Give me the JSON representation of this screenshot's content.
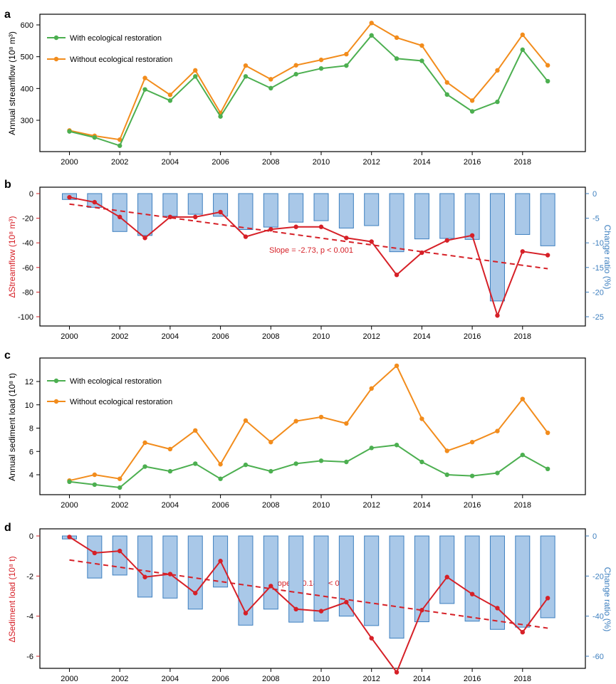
{
  "panels": [
    {
      "label": "a",
      "ylabel": "Annual streamflow (10⁸ m³)",
      "legend": [
        "With ecological restoration",
        "Without ecological restoration"
      ]
    },
    {
      "label": "b",
      "ylabel_left": "ΔStreamflow  (10⁸ m³)",
      "ylabel_right": "Change ratio (%)",
      "annotation": "Slope = -2.73, p < 0.001"
    },
    {
      "label": "c",
      "ylabel": "Annual sediment load (10⁸ t)",
      "legend": [
        "With ecological restoration",
        "Without ecological restoration"
      ]
    },
    {
      "label": "d",
      "ylabel_left": "ΔSediment load (10⁸ t)",
      "ylabel_right": "Change ratio (%)",
      "annotation": "Slope = -0.18, p < 0.01"
    }
  ],
  "colors": {
    "with": "#4caf50",
    "without": "#f28c1c",
    "delta": "#d62027",
    "bars_fill": "#a9c8e8",
    "bars_stroke": "#3d7fbf",
    "right_axis": "#3d7fbf"
  },
  "chart_data": [
    {
      "type": "line",
      "panel": "a",
      "x": [
        2000,
        2001,
        2002,
        2003,
        2004,
        2005,
        2006,
        2007,
        2008,
        2009,
        2010,
        2011,
        2012,
        2013,
        2014,
        2015,
        2016,
        2017,
        2018,
        2019
      ],
      "series": [
        {
          "name": "With ecological restoration",
          "values": [
            265,
            246,
            220,
            397,
            362,
            438,
            312,
            438,
            401,
            445,
            463,
            472,
            567,
            494,
            487,
            381,
            328,
            358,
            522,
            423
          ]
        },
        {
          "name": "Without ecological restoration",
          "values": [
            268,
            251,
            239,
            433,
            380,
            457,
            323,
            472,
            429,
            473,
            490,
            508,
            606,
            560,
            535,
            419,
            362,
            457,
            569,
            473
          ]
        }
      ],
      "xticks": [
        2000,
        2002,
        2004,
        2006,
        2008,
        2010,
        2012,
        2014,
        2016,
        2018
      ],
      "yticks": [
        300,
        400,
        500,
        600
      ],
      "xlim": [
        1999.1,
        2019.9
      ],
      "ylim": [
        210,
        620
      ],
      "ylabel": "Annual streamflow (10⁸ m³)",
      "legend_position": "top-left"
    },
    {
      "type": "bar+line",
      "panel": "b",
      "x": [
        2000,
        2001,
        2002,
        2003,
        2004,
        2005,
        2006,
        2007,
        2008,
        2009,
        2010,
        2011,
        2012,
        2013,
        2014,
        2015,
        2016,
        2017,
        2018,
        2019
      ],
      "series": [
        {
          "name": "ΔStreamflow",
          "axis": "left",
          "values": [
            -3,
            -7,
            -19,
            -36,
            -19,
            -19,
            -15,
            -35,
            -29,
            -27,
            -27,
            -36,
            -39,
            -66,
            -48,
            -38,
            -34,
            -99,
            -47,
            -50
          ]
        },
        {
          "name": "Change ratio",
          "axis": "right",
          "type": "bar",
          "values": [
            -1.2,
            -2.8,
            -7.7,
            -8.5,
            -4.6,
            -4.2,
            -4.6,
            -7.3,
            -6.8,
            -5.8,
            -5.5,
            -7.0,
            -6.5,
            -11.8,
            -9.2,
            -9.1,
            -9.3,
            -21.8,
            -8.3,
            -10.6
          ]
        }
      ],
      "trend": {
        "slope": -2.73,
        "start": -8.5,
        "end": -61
      },
      "annotation": "Slope = -2.73, p < 0.001",
      "xticks": [
        2000,
        2002,
        2004,
        2006,
        2008,
        2010,
        2012,
        2014,
        2016,
        2018
      ],
      "yticks_left": [
        0,
        -20,
        -40,
        -60,
        -80,
        -100
      ],
      "yticks_right": [
        0,
        -5,
        -10,
        -15,
        -20,
        -25
      ],
      "ylim_left": [
        -103,
        4
      ],
      "ylim_right": [
        -25.75,
        1
      ],
      "ylabel_left": "ΔStreamflow  (10⁸ m³)",
      "ylabel_right": "Change ratio (%)"
    },
    {
      "type": "line",
      "panel": "c",
      "x": [
        2000,
        2001,
        2002,
        2003,
        2004,
        2005,
        2006,
        2007,
        2008,
        2009,
        2010,
        2011,
        2012,
        2013,
        2014,
        2015,
        2016,
        2017,
        2018,
        2019
      ],
      "series": [
        {
          "name": "With ecological restoration",
          "values": [
            3.4,
            3.15,
            2.9,
            4.7,
            4.3,
            4.95,
            3.65,
            4.85,
            4.3,
            4.95,
            5.2,
            5.1,
            6.3,
            6.55,
            5.1,
            4.0,
            3.9,
            4.15,
            5.7,
            4.5
          ]
        },
        {
          "name": "Without ecological restoration",
          "values": [
            3.5,
            4.0,
            3.65,
            6.75,
            6.2,
            7.8,
            4.9,
            8.65,
            6.8,
            8.6,
            8.95,
            8.4,
            11.4,
            13.35,
            8.8,
            6.05,
            6.8,
            7.75,
            10.5,
            7.6
          ]
        }
      ],
      "xticks": [
        2000,
        2002,
        2004,
        2006,
        2008,
        2010,
        2012,
        2014,
        2016,
        2018
      ],
      "yticks": [
        4,
        6,
        8,
        10,
        12
      ],
      "xlim": [
        1999.1,
        2019.9
      ],
      "ylim": [
        2.6,
        13.9
      ],
      "ylabel": "Annual sediment load (10⁸ t)",
      "legend_position": "top-left"
    },
    {
      "type": "bar+line",
      "panel": "d",
      "x": [
        2000,
        2001,
        2002,
        2003,
        2004,
        2005,
        2006,
        2007,
        2008,
        2009,
        2010,
        2011,
        2012,
        2013,
        2014,
        2015,
        2016,
        2017,
        2018,
        2019
      ],
      "series": [
        {
          "name": "ΔSediment load",
          "axis": "left",
          "values": [
            -0.05,
            -0.85,
            -0.75,
            -2.05,
            -1.9,
            -2.85,
            -1.25,
            -3.85,
            -2.5,
            -3.65,
            -3.75,
            -3.3,
            -5.1,
            -6.8,
            -3.7,
            -2.05,
            -2.9,
            -3.6,
            -4.8,
            -3.1
          ]
        },
        {
          "name": "Change ratio",
          "axis": "right",
          "type": "bar",
          "values": [
            -1.5,
            -21,
            -19.5,
            -30.5,
            -31,
            -36.5,
            -25.5,
            -44.5,
            -36.5,
            -43,
            -42.5,
            -40,
            -44.7,
            -51,
            -42.8,
            -33.7,
            -42.5,
            -46.6,
            -45.5,
            -40.8
          ]
        }
      ],
      "trend": {
        "slope": -0.18,
        "start": -1.2,
        "end": -4.6
      },
      "annotation": "Slope = -0.18, p < 0.01",
      "xticks": [
        2000,
        2002,
        2004,
        2006,
        2008,
        2010,
        2012,
        2014,
        2016,
        2018
      ],
      "yticks_left": [
        0,
        -2,
        -4,
        -6
      ],
      "yticks_right": [
        0,
        -20,
        -40,
        -60
      ],
      "ylim_left": [
        -7.05,
        0.2
      ],
      "ylim_right": [
        -70.5,
        2
      ],
      "ylabel_left": "ΔSediment load (10⁸ t)",
      "ylabel_right": "Change ratio (%)"
    }
  ]
}
